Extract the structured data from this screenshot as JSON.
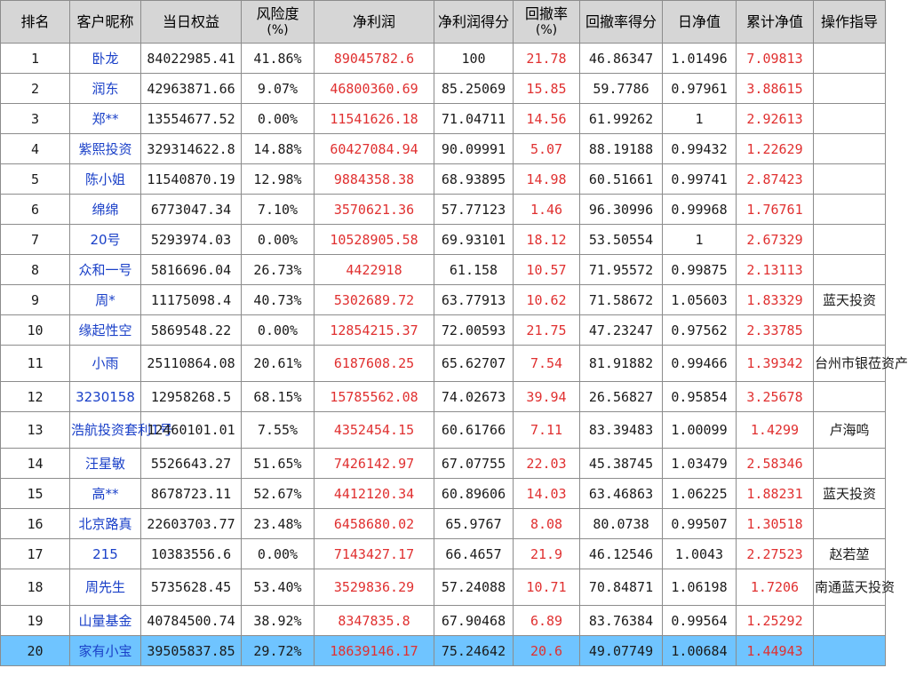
{
  "headers": {
    "rank": "排名",
    "nickname": "客户昵称",
    "equity": "当日权益",
    "risk": "风险度",
    "risk_unit": "(%)",
    "net_profit": "净利润",
    "net_profit_score": "净利润得分",
    "drawdown": "回撤率",
    "drawdown_unit": "(%)",
    "drawdown_score": "回撤率得分",
    "daily_nav": "日净值",
    "cum_nav": "累计净值",
    "guide": "操作指导"
  },
  "rows": [
    {
      "rank": "1",
      "name": "卧龙",
      "equity": "84022985.41",
      "risk": "41.86%",
      "net_profit": "89045782.6",
      "np_score": "100",
      "drawdown": "21.78",
      "dd_score": "46.86347",
      "daily_nav": "1.01496",
      "cum_nav": "7.09813",
      "guide": ""
    },
    {
      "rank": "2",
      "name": "润东",
      "equity": "42963871.66",
      "risk": "9.07%",
      "net_profit": "46800360.69",
      "np_score": "85.25069",
      "drawdown": "15.85",
      "dd_score": "59.7786",
      "daily_nav": "0.97961",
      "cum_nav": "3.88615",
      "guide": ""
    },
    {
      "rank": "3",
      "name": "郑**",
      "equity": "13554677.52",
      "risk": "0.00%",
      "net_profit": "11541626.18",
      "np_score": "71.04711",
      "drawdown": "14.56",
      "dd_score": "61.99262",
      "daily_nav": "1",
      "cum_nav": "2.92613",
      "guide": ""
    },
    {
      "rank": "4",
      "name": "紫熙投资",
      "equity": "329314622.8",
      "risk": "14.88%",
      "net_profit": "60427084.94",
      "np_score": "90.09991",
      "drawdown": "5.07",
      "dd_score": "88.19188",
      "daily_nav": "0.99432",
      "cum_nav": "1.22629",
      "guide": ""
    },
    {
      "rank": "5",
      "name": "陈小姐",
      "equity": "11540870.19",
      "risk": "12.98%",
      "net_profit": "9884358.38",
      "np_score": "68.93895",
      "drawdown": "14.98",
      "dd_score": "60.51661",
      "daily_nav": "0.99741",
      "cum_nav": "2.87423",
      "guide": ""
    },
    {
      "rank": "6",
      "name": "绵绵",
      "equity": "6773047.34",
      "risk": "7.10%",
      "net_profit": "3570621.36",
      "np_score": "57.77123",
      "drawdown": "1.46",
      "dd_score": "96.30996",
      "daily_nav": "0.99968",
      "cum_nav": "1.76761",
      "guide": ""
    },
    {
      "rank": "7",
      "name": "20号",
      "equity": "5293974.03",
      "risk": "0.00%",
      "net_profit": "10528905.58",
      "np_score": "69.93101",
      "drawdown": "18.12",
      "dd_score": "53.50554",
      "daily_nav": "1",
      "cum_nav": "2.67329",
      "guide": ""
    },
    {
      "rank": "8",
      "name": "众和一号",
      "equity": "5816696.04",
      "risk": "26.73%",
      "net_profit": "4422918",
      "np_score": "61.158",
      "drawdown": "10.57",
      "dd_score": "71.95572",
      "daily_nav": "0.99875",
      "cum_nav": "2.13113",
      "guide": ""
    },
    {
      "rank": "9",
      "name": "周*",
      "equity": "11175098.4",
      "risk": "40.73%",
      "net_profit": "5302689.72",
      "np_score": "63.77913",
      "drawdown": "10.62",
      "dd_score": "71.58672",
      "daily_nav": "1.05603",
      "cum_nav": "1.83329",
      "guide": "蓝天投资"
    },
    {
      "rank": "10",
      "name": "缘起性空",
      "equity": "5869548.22",
      "risk": "0.00%",
      "net_profit": "12854215.37",
      "np_score": "72.00593",
      "drawdown": "21.75",
      "dd_score": "47.23247",
      "daily_nav": "0.97562",
      "cum_nav": "2.33785",
      "guide": ""
    },
    {
      "rank": "11",
      "name": "小雨",
      "equity": "25110864.08",
      "risk": "20.61%",
      "net_profit": "6187608.25",
      "np_score": "65.62707",
      "drawdown": "7.54",
      "dd_score": "81.91882",
      "daily_nav": "0.99466",
      "cum_nav": "1.39342",
      "guide": "台州市银莅资产"
    },
    {
      "rank": "12",
      "name": "3230158",
      "equity": "12958268.5",
      "risk": "68.15%",
      "net_profit": "15785562.08",
      "np_score": "74.02673",
      "drawdown": "39.94",
      "dd_score": "26.56827",
      "daily_nav": "0.95854",
      "cum_nav": "3.25678",
      "guide": ""
    },
    {
      "rank": "13",
      "name": "浩航投资套利1号",
      "equity": "12460101.01",
      "risk": "7.55%",
      "net_profit": "4352454.15",
      "np_score": "60.61766",
      "drawdown": "7.11",
      "dd_score": "83.39483",
      "daily_nav": "1.00099",
      "cum_nav": "1.4299",
      "guide": "卢海鸣"
    },
    {
      "rank": "14",
      "name": "汪星敏",
      "equity": "5526643.27",
      "risk": "51.65%",
      "net_profit": "7426142.97",
      "np_score": "67.07755",
      "drawdown": "22.03",
      "dd_score": "45.38745",
      "daily_nav": "1.03479",
      "cum_nav": "2.58346",
      "guide": ""
    },
    {
      "rank": "15",
      "name": "高**",
      "equity": "8678723.11",
      "risk": "52.67%",
      "net_profit": "4412120.34",
      "np_score": "60.89606",
      "drawdown": "14.03",
      "dd_score": "63.46863",
      "daily_nav": "1.06225",
      "cum_nav": "1.88231",
      "guide": "蓝天投资"
    },
    {
      "rank": "16",
      "name": "北京路真",
      "equity": "22603703.77",
      "risk": "23.48%",
      "net_profit": "6458680.02",
      "np_score": "65.9767",
      "drawdown": "8.08",
      "dd_score": "80.0738",
      "daily_nav": "0.99507",
      "cum_nav": "1.30518",
      "guide": ""
    },
    {
      "rank": "17",
      "name": "215",
      "equity": "10383556.6",
      "risk": "0.00%",
      "net_profit": "7143427.17",
      "np_score": "66.4657",
      "drawdown": "21.9",
      "dd_score": "46.12546",
      "daily_nav": "1.0043",
      "cum_nav": "2.27523",
      "guide": "赵若堃"
    },
    {
      "rank": "18",
      "name": "周先生",
      "equity": "5735628.45",
      "risk": "53.40%",
      "net_profit": "3529836.29",
      "np_score": "57.24088",
      "drawdown": "10.71",
      "dd_score": "70.84871",
      "daily_nav": "1.06198",
      "cum_nav": "1.7206",
      "guide": "南通蓝天投资"
    },
    {
      "rank": "19",
      "name": "山量基金",
      "equity": "40784500.74",
      "risk": "38.92%",
      "net_profit": "8347835.8",
      "np_score": "67.90468",
      "drawdown": "6.89",
      "dd_score": "83.76384",
      "daily_nav": "0.99564",
      "cum_nav": "1.25292",
      "guide": ""
    },
    {
      "rank": "20",
      "name": "家有小宝",
      "equity": "39505837.85",
      "risk": "29.72%",
      "net_profit": "18639146.17",
      "np_score": "75.24642",
      "drawdown": "20.6",
      "dd_score": "49.07749",
      "daily_nav": "1.00684",
      "cum_nav": "1.44943",
      "guide": ""
    }
  ],
  "selected_row": 20,
  "colors": {
    "header_bg": "#d6d6d6",
    "name_text": "#1a40c8",
    "highlight_text": "#e03030",
    "selected_row_bg": "#6fc4ff"
  }
}
